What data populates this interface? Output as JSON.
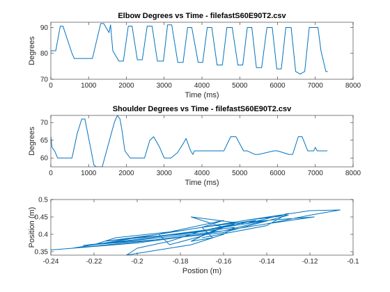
{
  "figure": {
    "background": "#ffffff"
  },
  "chart_data": [
    {
      "type": "line",
      "title": "Elbow Degrees vs Time - filefastS60E90T2.csv",
      "xlabel": "Time (ms)",
      "ylabel": "Degrees",
      "xlim": [
        0,
        8000
      ],
      "ylim": [
        70,
        92
      ],
      "xticks": [
        0,
        1000,
        2000,
        3000,
        4000,
        5000,
        6000,
        7000,
        8000
      ],
      "yticks": [
        70,
        80,
        90
      ],
      "xtick_labels": [
        "0",
        "1000",
        "2000",
        "3000",
        "4000",
        "5000",
        "6000",
        "7000",
        "8000"
      ],
      "ytick_labels": [
        "70",
        "80",
        "90"
      ],
      "grid": false,
      "color": "#0072BD",
      "series": [
        {
          "x": [
            0,
            130,
            250,
            320,
            560,
            620,
            880,
            1100,
            1320,
            1400,
            1540,
            1580,
            1640,
            1800,
            1920,
            2050,
            2150,
            2290,
            2420,
            2550,
            2680,
            2820,
            2980,
            3090,
            3200,
            3360,
            3500,
            3620,
            3730,
            3900,
            4020,
            4140,
            4260,
            4400,
            4540,
            4660,
            4800,
            4950,
            5080,
            5200,
            5320,
            5440,
            5580,
            5720,
            5860,
            5980,
            6100,
            6220,
            6360,
            6480,
            6600,
            6720,
            6840,
            6960,
            7070,
            7150,
            7280,
            7330
          ],
          "y": [
            81,
            81,
            90.5,
            90.5,
            80,
            78,
            78,
            78,
            91.5,
            91.5,
            88,
            91,
            81,
            77,
            77,
            90.5,
            90.5,
            77.5,
            77.5,
            90.5,
            90.5,
            77,
            77,
            91,
            91,
            76.5,
            76.5,
            90,
            90,
            76.5,
            76.5,
            90,
            90,
            75.5,
            75.5,
            90,
            90,
            75.5,
            75.5,
            90,
            90,
            74.5,
            74.5,
            90,
            90,
            74,
            74,
            90,
            90,
            73,
            72,
            73,
            90,
            90,
            90,
            81,
            73,
            73
          ]
        }
      ]
    },
    {
      "type": "line",
      "title": "Shoulder Degrees vs Time - filefastS60E90T2.csv",
      "xlabel": "Time (ms)",
      "ylabel": "Degrees",
      "xlim": [
        0,
        8000
      ],
      "ylim": [
        57.5,
        72
      ],
      "xticks": [
        0,
        1000,
        2000,
        3000,
        4000,
        5000,
        6000,
        7000,
        8000
      ],
      "yticks": [
        60,
        65,
        70
      ],
      "xtick_labels": [
        "0",
        "1000",
        "2000",
        "3000",
        "4000",
        "5000",
        "6000",
        "7000",
        "8000"
      ],
      "ytick_labels": [
        "60",
        "65",
        "70"
      ],
      "grid": false,
      "color": "#0072BD",
      "series": [
        {
          "x": [
            0,
            30,
            100,
            180,
            300,
            560,
            700,
            820,
            900,
            1050,
            1140,
            1200,
            1280,
            1360,
            1450,
            1680,
            1760,
            1830,
            1880,
            1960,
            2100,
            2480,
            2620,
            2720,
            2880,
            3000,
            3180,
            3350,
            3500,
            3580,
            3700,
            3760,
            3800,
            4100,
            4480,
            4580,
            4760,
            4900,
            5100,
            5200,
            5400,
            5500,
            5900,
            6000,
            6300,
            6400,
            6550,
            6650,
            6800,
            6900,
            6960,
            7000,
            7050,
            7320
          ],
          "y": [
            66,
            63,
            62,
            60,
            60,
            60,
            67,
            71,
            71,
            63,
            58,
            57.5,
            57.5,
            57.5,
            61,
            70,
            72,
            71,
            68,
            62,
            60,
            60,
            65,
            66,
            63,
            60,
            60,
            61.5,
            64,
            65.5,
            62,
            61,
            62,
            62,
            62,
            62,
            66,
            66,
            62,
            62,
            61,
            61,
            62,
            62,
            61,
            61,
            66,
            66,
            62,
            62,
            62,
            63,
            62,
            62
          ]
        }
      ]
    },
    {
      "type": "line",
      "title": "",
      "xlabel": "Postion (m)",
      "ylabel": "Position (m)",
      "xlim": [
        -0.24,
        -0.1
      ],
      "ylim": [
        0.34,
        0.5
      ],
      "xticks": [
        -0.24,
        -0.22,
        -0.2,
        -0.18,
        -0.16,
        -0.14,
        -0.12,
        -0.1
      ],
      "yticks": [
        0.35,
        0.4,
        0.45,
        0.5
      ],
      "xtick_labels": [
        "-0.24",
        "-0.22",
        "-0.2",
        "-0.18",
        "-0.16",
        "-0.14",
        "-0.12",
        "-0.1"
      ],
      "ytick_labels": [
        "0.35",
        "0.4",
        "0.45",
        "0.5"
      ],
      "grid": false,
      "color": "#0072BD",
      "series": [
        {
          "x": [
            -0.24,
            -0.2,
            -0.17,
            -0.14,
            -0.12,
            -0.106,
            -0.12,
            -0.15,
            -0.18,
            -0.21,
            -0.23,
            -0.2,
            -0.17,
            -0.14,
            -0.118,
            -0.14,
            -0.17,
            -0.2,
            -0.225,
            -0.19,
            -0.16,
            -0.13,
            -0.15,
            -0.18,
            -0.21,
            -0.22,
            -0.19,
            -0.16,
            -0.14,
            -0.16,
            -0.19,
            -0.215,
            -0.19,
            -0.165,
            -0.145,
            -0.17,
            -0.2,
            -0.18,
            -0.155,
            -0.16,
            -0.175,
            -0.205,
            -0.2,
            -0.185,
            -0.17,
            -0.155,
            -0.165,
            -0.175,
            -0.165,
            -0.17,
            -0.16,
            -0.19,
            -0.185,
            -0.17,
            -0.16,
            -0.175,
            -0.15,
            -0.13,
            -0.14,
            -0.17
          ],
          "y": [
            0.355,
            0.375,
            0.4,
            0.43,
            0.455,
            0.47,
            0.468,
            0.44,
            0.41,
            0.38,
            0.36,
            0.378,
            0.4,
            0.43,
            0.45,
            0.44,
            0.41,
            0.385,
            0.368,
            0.385,
            0.405,
            0.455,
            0.44,
            0.41,
            0.39,
            0.37,
            0.39,
            0.41,
            0.44,
            0.43,
            0.4,
            0.38,
            0.395,
            0.415,
            0.44,
            0.42,
            0.39,
            0.4,
            0.42,
            0.4,
            0.37,
            0.34,
            0.36,
            0.38,
            0.41,
            0.43,
            0.41,
            0.38,
            0.39,
            0.42,
            0.44,
            0.4,
            0.37,
            0.395,
            0.42,
            0.45,
            0.43,
            0.46,
            0.425,
            0.39
          ]
        }
      ]
    }
  ]
}
